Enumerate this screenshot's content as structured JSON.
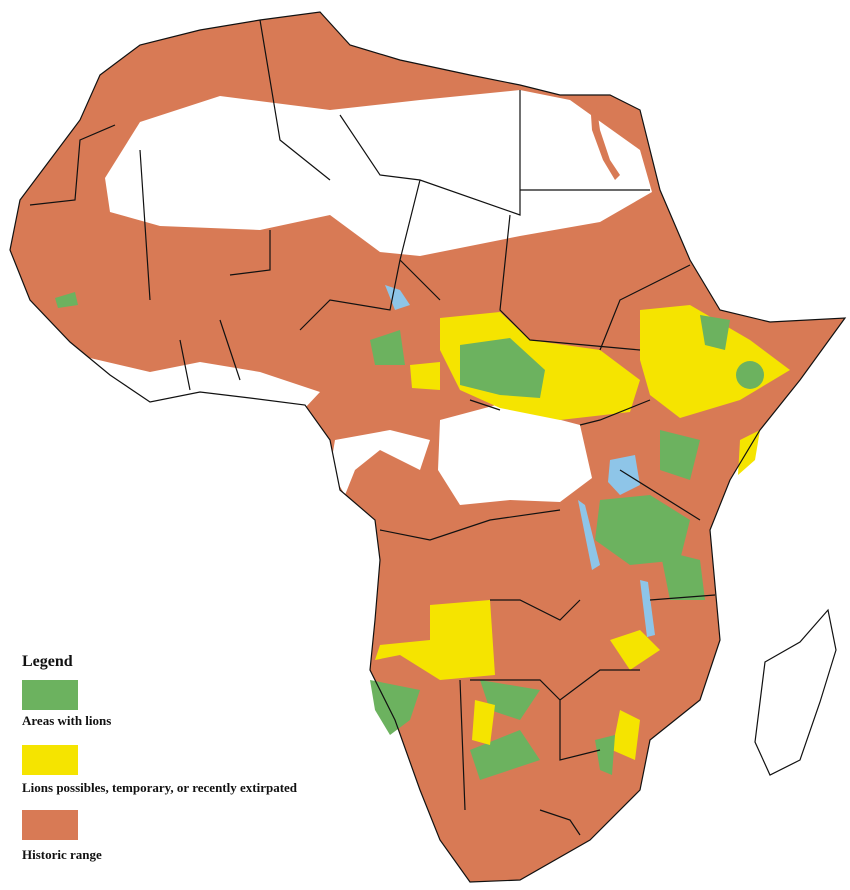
{
  "legend": {
    "title": "Legend",
    "items": [
      {
        "label": "Areas with lions",
        "color": "#6cb25f"
      },
      {
        "label": "Lions possibles, temporary, or recently extirpated",
        "color": "#f5e400"
      },
      {
        "label": "Historic range",
        "color": "#d87a55"
      }
    ]
  }
}
